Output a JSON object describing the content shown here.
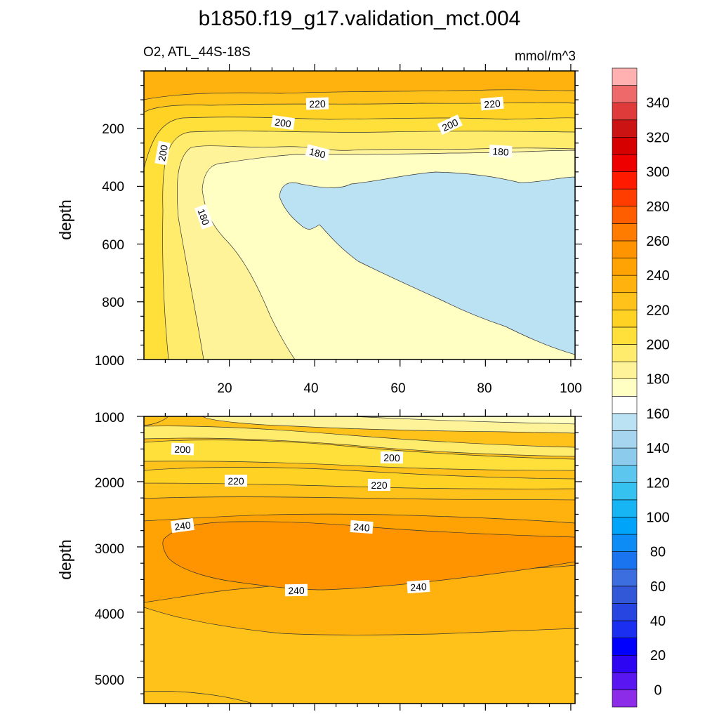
{
  "chart_data": {
    "type": "heatmap",
    "title": "b1850.f19_g17.validation_mct.004",
    "subtitle_left": "O2, ATL_44S-18S",
    "subtitle_right": "mmol/m^3",
    "ylabel": "depth",
    "colorbar": {
      "levels": [
        0,
        10,
        20,
        30,
        40,
        50,
        60,
        70,
        80,
        90,
        100,
        110,
        120,
        130,
        140,
        150,
        160,
        170,
        180,
        190,
        200,
        210,
        220,
        230,
        240,
        250,
        260,
        270,
        280,
        290,
        300,
        310,
        320,
        330,
        340,
        350
      ],
      "colors": [
        "#8c2be8",
        "#5a16f0",
        "#2d05f3",
        "#0000ff",
        "#1a2ff0",
        "#2745e0",
        "#3258d8",
        "#3c6ee0",
        "#1a74f0",
        "#0e8cf5",
        "#00a4f8",
        "#17b5f4",
        "#35c2f0",
        "#5cc6ee",
        "#8dcbed",
        "#a5d5ef",
        "#bbe2f3",
        "#ffffff",
        "#ffffc4",
        "#fff39a",
        "#ffeb6c",
        "#ffe03a",
        "#ffd223",
        "#ffc21a",
        "#ffb10e",
        "#ffa204",
        "#ff9300",
        "#ff7c00",
        "#ff5e00",
        "#ff3d00",
        "#ff1a00",
        "#ee0000",
        "#d70000",
        "#cb1313",
        "#df3b3b",
        "#ee6a6a",
        "#ffb0b0"
      ],
      "tick_labels": [
        "0",
        "20",
        "40",
        "60",
        "80",
        "100",
        "120",
        "140",
        "160",
        "180",
        "200",
        "220",
        "240",
        "260",
        "280",
        "300",
        "320",
        "340"
      ]
    },
    "panels": [
      {
        "name": "upper",
        "x_range": [
          0,
          101
        ],
        "y_range": [
          0,
          1000
        ],
        "x_tick_labels": [
          "20",
          "40",
          "60",
          "80",
          "100"
        ],
        "y_tick_labels": [
          "200",
          "400",
          "600",
          "800",
          "1000"
        ],
        "contour_labels": [
          "220",
          "220",
          "200",
          "200",
          "200",
          "180",
          "180",
          "180"
        ]
      },
      {
        "name": "lower",
        "x_range": [
          0,
          101
        ],
        "y_range": [
          1000,
          5400
        ],
        "x_tick_labels": [],
        "y_tick_labels": [
          "1000",
          "2000",
          "3000",
          "4000",
          "5000"
        ],
        "contour_labels": [
          "200",
          "200",
          "220",
          "220",
          "240",
          "240",
          "240",
          "240"
        ]
      }
    ]
  }
}
